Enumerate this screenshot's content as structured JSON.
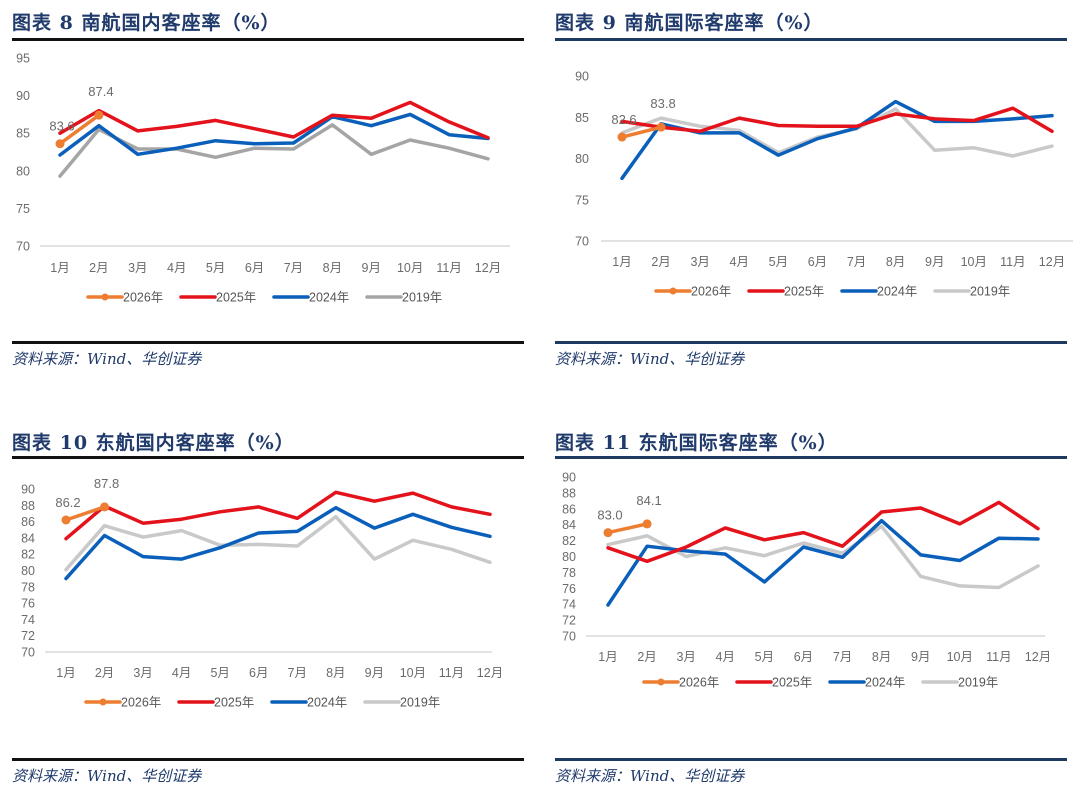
{
  "source_text": "资料来源：Wind、华创证券",
  "chart_data": [
    {
      "type": "line",
      "title": "图表 8   南航国内客座率（%）",
      "xlabel": "",
      "ylabel": "",
      "categories": [
        "1月",
        "2月",
        "3月",
        "4月",
        "5月",
        "6月",
        "7月",
        "8月",
        "9月",
        "10月",
        "11月",
        "12月"
      ],
      "ylim": [
        70,
        95
      ],
      "yticks": [
        70,
        75,
        80,
        85,
        90,
        95
      ],
      "ytick_labels": [
        "70",
        "75",
        "80",
        "85",
        "90",
        "95"
      ],
      "grid": false,
      "legend": "bottom",
      "series": [
        {
          "name": "2026年",
          "color": "#ed7d31",
          "marker": true,
          "values": [
            83.6,
            87.4
          ],
          "labels": [
            "83.6",
            "87.4"
          ]
        },
        {
          "name": "2025年",
          "color": "#e3121b",
          "marker": false,
          "values": [
            85.0,
            88.0,
            85.3,
            85.9,
            86.7,
            85.6,
            84.5,
            87.4,
            87.0,
            89.1,
            86.5,
            84.4
          ]
        },
        {
          "name": "2024年",
          "color": "#0a5fba",
          "marker": false,
          "values": [
            82.1,
            86.0,
            82.2,
            83.0,
            84.0,
            83.6,
            83.7,
            87.2,
            86.0,
            87.5,
            84.8,
            84.3
          ]
        },
        {
          "name": "2019年",
          "color": "#a5a5a5",
          "marker": false,
          "values": [
            79.3,
            85.5,
            82.9,
            82.9,
            81.8,
            83.0,
            82.9,
            86.1,
            82.2,
            84.1,
            83.0,
            81.6
          ]
        }
      ]
    },
    {
      "type": "line",
      "title": "图表 9   南航国际客座率（%）",
      "xlabel": "",
      "ylabel": "",
      "categories": [
        "1月",
        "2月",
        "3月",
        "4月",
        "5月",
        "6月",
        "7月",
        "8月",
        "9月",
        "10月",
        "11月",
        "12月"
      ],
      "ylim": [
        70,
        90
      ],
      "yticks": [
        70,
        75,
        80,
        85,
        90
      ],
      "ytick_labels": [
        "70",
        "75",
        "80",
        "85",
        "90"
      ],
      "grid": false,
      "legend": "bottom",
      "series": [
        {
          "name": "2026年",
          "color": "#ed7d31",
          "marker": true,
          "values": [
            82.6,
            83.8
          ],
          "labels": [
            "82.6",
            "83.8"
          ]
        },
        {
          "name": "2025年",
          "color": "#e3121b",
          "marker": false,
          "values": [
            84.5,
            83.8,
            83.3,
            84.9,
            84.0,
            83.9,
            83.9,
            85.4,
            84.8,
            84.6,
            86.1,
            83.3
          ]
        },
        {
          "name": "2024年",
          "color": "#0a5fba",
          "marker": false,
          "values": [
            77.6,
            84.2,
            83.1,
            83.1,
            80.4,
            82.4,
            83.7,
            86.9,
            84.5,
            84.5,
            84.8,
            85.2
          ]
        },
        {
          "name": "2019年",
          "color": "#c9c9c9",
          "marker": false,
          "values": [
            83.1,
            84.9,
            83.9,
            83.4,
            80.7,
            82.6,
            83.6,
            86.0,
            81.0,
            81.3,
            80.3,
            81.5
          ]
        }
      ]
    },
    {
      "type": "line",
      "title": "图表 10   东航国内客座率（%）",
      "xlabel": "",
      "ylabel": "",
      "categories": [
        "1月",
        "2月",
        "3月",
        "4月",
        "5月",
        "6月",
        "7月",
        "8月",
        "9月",
        "10月",
        "11月",
        "12月"
      ],
      "ylim": [
        70,
        90
      ],
      "yticks": [
        70,
        72,
        74,
        76,
        78,
        80,
        82,
        84,
        86,
        88,
        90
      ],
      "ytick_labels": [
        "70",
        "72",
        "74",
        "76",
        "78",
        "80",
        "82",
        "84",
        "86",
        "88",
        "90"
      ],
      "grid": false,
      "legend": "bottom",
      "series": [
        {
          "name": "2026年",
          "color": "#ed7d31",
          "marker": true,
          "values": [
            86.2,
            87.8
          ],
          "labels": [
            "86.2",
            "87.8"
          ]
        },
        {
          "name": "2025年",
          "color": "#e3121b",
          "marker": false,
          "values": [
            83.9,
            87.9,
            85.8,
            86.3,
            87.2,
            87.8,
            86.4,
            89.6,
            88.5,
            89.5,
            87.8,
            86.9
          ]
        },
        {
          "name": "2024年",
          "color": "#0a5fba",
          "marker": false,
          "values": [
            79.0,
            84.3,
            81.7,
            81.4,
            82.8,
            84.6,
            84.8,
            87.7,
            85.2,
            86.9,
            85.3,
            84.2
          ]
        },
        {
          "name": "2019年",
          "color": "#c9c9c9",
          "marker": false,
          "values": [
            80.1,
            85.5,
            84.1,
            84.9,
            83.1,
            83.2,
            83.0,
            86.6,
            81.4,
            83.7,
            82.6,
            81.0
          ]
        }
      ]
    },
    {
      "type": "line",
      "title": "图表 11   东航国际客座率（%）",
      "xlabel": "",
      "ylabel": "",
      "categories": [
        "1月",
        "2月",
        "3月",
        "4月",
        "5月",
        "6月",
        "7月",
        "8月",
        "9月",
        "10月",
        "11月",
        "12月"
      ],
      "ylim": [
        70,
        90
      ],
      "yticks": [
        70,
        72,
        74,
        76,
        78,
        80,
        82,
        84,
        86,
        88,
        90
      ],
      "ytick_labels": [
        "70",
        "72",
        "74",
        "76",
        "78",
        "80",
        "82",
        "84",
        "86",
        "88",
        "90"
      ],
      "grid": false,
      "legend": "bottom",
      "series": [
        {
          "name": "2026年",
          "color": "#ed7d31",
          "marker": true,
          "values": [
            83.0,
            84.1
          ],
          "labels": [
            "83.0",
            "84.1"
          ]
        },
        {
          "name": "2025年",
          "color": "#e3121b",
          "marker": false,
          "values": [
            81.1,
            79.4,
            81.2,
            83.6,
            82.1,
            83.0,
            81.3,
            85.6,
            86.1,
            84.1,
            86.8,
            83.5
          ]
        },
        {
          "name": "2024年",
          "color": "#0a5fba",
          "marker": false,
          "values": [
            73.9,
            81.3,
            80.7,
            80.3,
            76.8,
            81.2,
            79.9,
            84.5,
            80.2,
            79.5,
            82.3,
            82.2
          ]
        },
        {
          "name": "2019年",
          "color": "#c9c9c9",
          "marker": false,
          "values": [
            81.5,
            82.6,
            80.0,
            81.1,
            80.1,
            81.7,
            80.4,
            83.8,
            77.5,
            76.3,
            76.1,
            78.8
          ]
        }
      ]
    }
  ],
  "rule_colors": {
    "left": "#111111",
    "right": "#1f3a5f"
  }
}
